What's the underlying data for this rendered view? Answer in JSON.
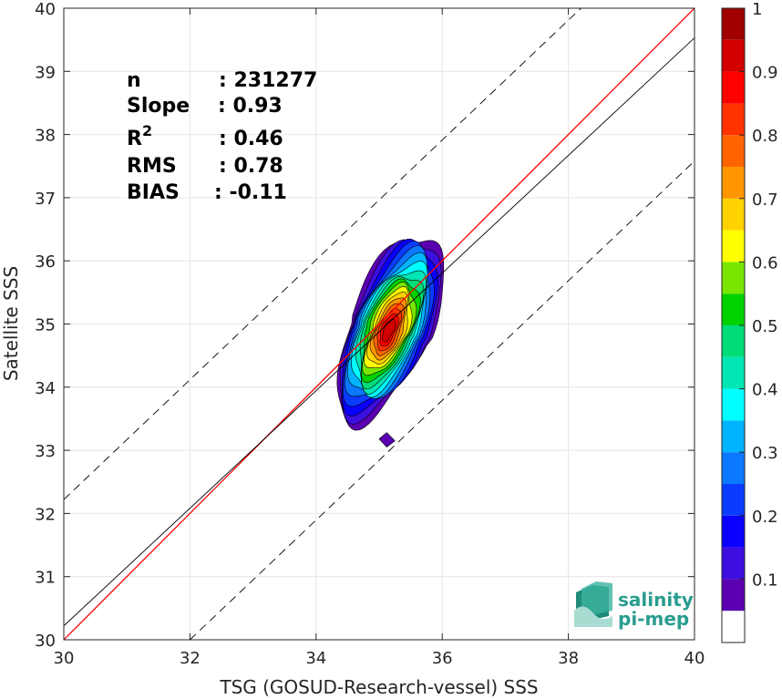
{
  "chart_data": {
    "type": "contour-scatter",
    "xlabel": "TSG (GOSUD-Research-vessel) SSS",
    "ylabel": "Satellite SSS",
    "xlim": [
      30,
      40
    ],
    "ylim": [
      30,
      40
    ],
    "xticks": [
      30,
      32,
      34,
      36,
      38,
      40
    ],
    "yticks": [
      30,
      31,
      32,
      33,
      34,
      35,
      36,
      37,
      38,
      39,
      40
    ],
    "grid": true,
    "stats": [
      {
        "key": "n",
        "value": ": 231277"
      },
      {
        "key": "Slope",
        "value": ": 0.93"
      },
      {
        "key": "R",
        "sup": "2",
        "value": ": 0.46"
      },
      {
        "key": "RMS",
        "value": ": 0.78"
      },
      {
        "key": "BIAS",
        "value": ": -0.11"
      }
    ],
    "lines": [
      {
        "kind": "identity",
        "color": "#ff0000",
        "style": "solid",
        "slope": 1,
        "intercept": 0
      },
      {
        "kind": "regression",
        "color": "#000000",
        "style": "solid",
        "slope": 0.93,
        "points": [
          [
            30,
            30.22
          ],
          [
            40,
            39.53
          ]
        ]
      },
      {
        "kind": "upper-bound",
        "color": "#000000",
        "style": "dashed",
        "points": [
          [
            30,
            32.22
          ],
          [
            38.2,
            40
          ]
        ]
      },
      {
        "kind": "lower-bound",
        "color": "#000000",
        "style": "dashed",
        "points": [
          [
            32,
            30
          ],
          [
            40,
            37.58
          ]
        ]
      }
    ],
    "density_center": [
      35.15,
      34.9
    ],
    "colorbar": {
      "ticks": [
        "0.1",
        "0.2",
        "0.3",
        "0.4",
        "0.5",
        "0.6",
        "0.7",
        "0.8",
        "0.9",
        "1"
      ],
      "colors": [
        "#ffffff",
        "#5a00b0",
        "#3c0ee0",
        "#0a00ff",
        "#0a3cff",
        "#0a78ff",
        "#00b4ff",
        "#00ffff",
        "#00e6b4",
        "#00dc78",
        "#00d200",
        "#78e600",
        "#ffff00",
        "#ffd200",
        "#ff9600",
        "#ff6400",
        "#ff3200",
        "#ff0000",
        "#d20000",
        "#a00000"
      ],
      "level_edges": [
        0.0,
        0.05,
        0.1,
        0.15,
        0.2,
        0.25,
        0.3,
        0.35,
        0.4,
        0.45,
        0.5,
        0.55,
        0.6,
        0.65,
        0.7,
        0.75,
        0.8,
        0.85,
        0.9,
        0.95,
        1.0
      ]
    }
  },
  "logo": {
    "line1": "salinity",
    "line2": "pi-mep"
  }
}
